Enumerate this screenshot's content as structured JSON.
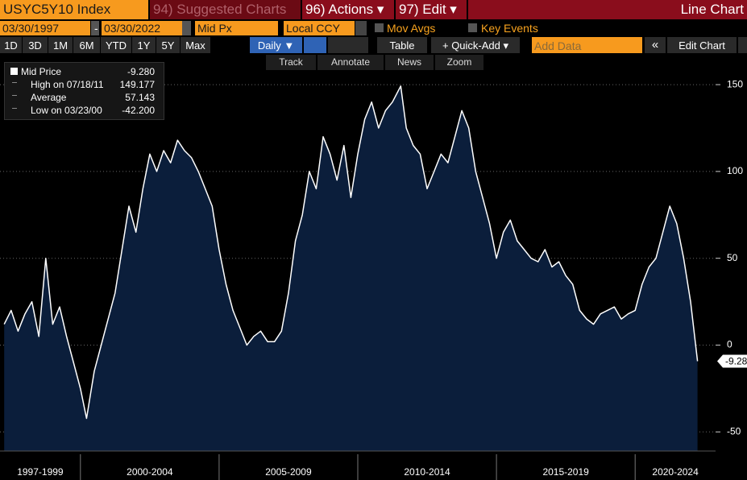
{
  "ui": {
    "ticker": "USYC5Y10 Index",
    "menu": [
      "94) Suggested Charts",
      "96) Actions ▾",
      "97) Edit ▾"
    ],
    "chart_kind": "Line Chart",
    "start_date": "03/30/1997",
    "date_sep": "-",
    "end_date": "03/30/2022",
    "price_field": "Mid Px",
    "currency": "Local CCY",
    "mov_avgs": "Mov Avgs",
    "key_events": "Key Events",
    "periods": [
      "1D",
      "3D",
      "1M",
      "6M",
      "YTD",
      "1Y",
      "5Y",
      "Max"
    ],
    "frequency": "Daily ▼",
    "table": "Table",
    "quick_add": "+ Quick-Add ▾",
    "add_data": "Add Data",
    "collapse": "«",
    "edit_chart": "Edit Chart",
    "tools": [
      "Track",
      "Annotate",
      "News",
      "Zoom"
    ]
  },
  "chart_data": {
    "type": "area",
    "x": [
      1997.25,
      1997.5,
      1997.75,
      1998,
      1998.25,
      1998.5,
      1998.75,
      1999,
      1999.25,
      1999.5,
      1999.75,
      2000,
      2000.22,
      2000.5,
      2000.75,
      2001,
      2001.25,
      2001.5,
      2001.75,
      2002,
      2002.25,
      2002.5,
      2002.75,
      2003,
      2003.25,
      2003.5,
      2003.75,
      2004,
      2004.25,
      2004.5,
      2004.75,
      2005,
      2005.25,
      2005.5,
      2005.75,
      2006,
      2006.25,
      2006.5,
      2006.75,
      2007,
      2007.25,
      2007.5,
      2007.75,
      2008,
      2008.25,
      2008.5,
      2008.75,
      2009,
      2009.25,
      2009.5,
      2009.75,
      2010,
      2010.25,
      2010.5,
      2010.75,
      2011,
      2011.25,
      2011.55,
      2011.75,
      2012,
      2012.25,
      2012.5,
      2012.75,
      2013,
      2013.25,
      2013.5,
      2013.75,
      2014,
      2014.25,
      2014.5,
      2014.75,
      2015,
      2015.25,
      2015.5,
      2015.75,
      2016,
      2016.25,
      2016.5,
      2016.75,
      2017,
      2017.25,
      2017.5,
      2017.75,
      2018,
      2018.25,
      2018.5,
      2018.75,
      2019,
      2019.25,
      2019.5,
      2019.75,
      2020,
      2020.25,
      2020.5,
      2020.75,
      2021,
      2021.25,
      2021.5,
      2021.75,
      2022,
      2022.25
    ],
    "series": [
      {
        "name": "Mid Price",
        "color": "#ffffff",
        "fill": "#0b1e3b",
        "values": [
          12,
          20,
          8,
          18,
          25,
          5,
          50,
          12,
          22,
          5,
          -10,
          -25,
          -42.2,
          -15,
          0,
          15,
          30,
          55,
          80,
          65,
          90,
          110,
          100,
          112,
          105,
          118,
          112,
          108,
          100,
          90,
          80,
          55,
          35,
          20,
          10,
          0,
          5,
          8,
          2,
          2,
          8,
          30,
          60,
          75,
          100,
          90,
          120,
          110,
          95,
          115,
          85,
          110,
          130,
          140,
          125,
          135,
          140,
          149.177,
          125,
          115,
          110,
          90,
          100,
          110,
          105,
          120,
          135,
          125,
          100,
          85,
          70,
          50,
          65,
          72,
          60,
          55,
          50,
          48,
          55,
          45,
          48,
          40,
          35,
          20,
          15,
          12,
          18,
          20,
          22,
          15,
          18,
          20,
          35,
          45,
          50,
          65,
          80,
          70,
          50,
          25,
          -9.28
        ]
      }
    ],
    "legend_stats": [
      {
        "label": "Mid Price",
        "value": {
          "value": -9.28,
          "label": "-9.280"
        }
      },
      {
        "label": "High on 07/18/11",
        "value": 149.177
      },
      {
        "label": "Average",
        "value": 57.143
      },
      {
        "label": "Low on 03/23/00",
        "value": {
          "value": -42.2,
          "label": "-42.200"
        }
      }
    ],
    "last_price": {
      "value": -9.28,
      "label": "-9.28"
    },
    "xlim": [
      1997.1,
      2022.9
    ],
    "ylim": [
      -61,
      157
    ],
    "yticks": [
      -50,
      0,
      50,
      100,
      150
    ],
    "grid": true,
    "x_groups": [
      {
        "label": "1997-1999",
        "from": 1997,
        "to": 2000
      },
      {
        "label": "2000-2004",
        "from": 2000,
        "to": 2005
      },
      {
        "label": "2005-2009",
        "from": 2005,
        "to": 2010
      },
      {
        "label": "2010-2014",
        "from": 2010,
        "to": 2015
      },
      {
        "label": "2015-2019",
        "from": 2015,
        "to": 2020
      },
      {
        "label": "2020-2024",
        "from": 2020,
        "to": 2025
      }
    ]
  }
}
